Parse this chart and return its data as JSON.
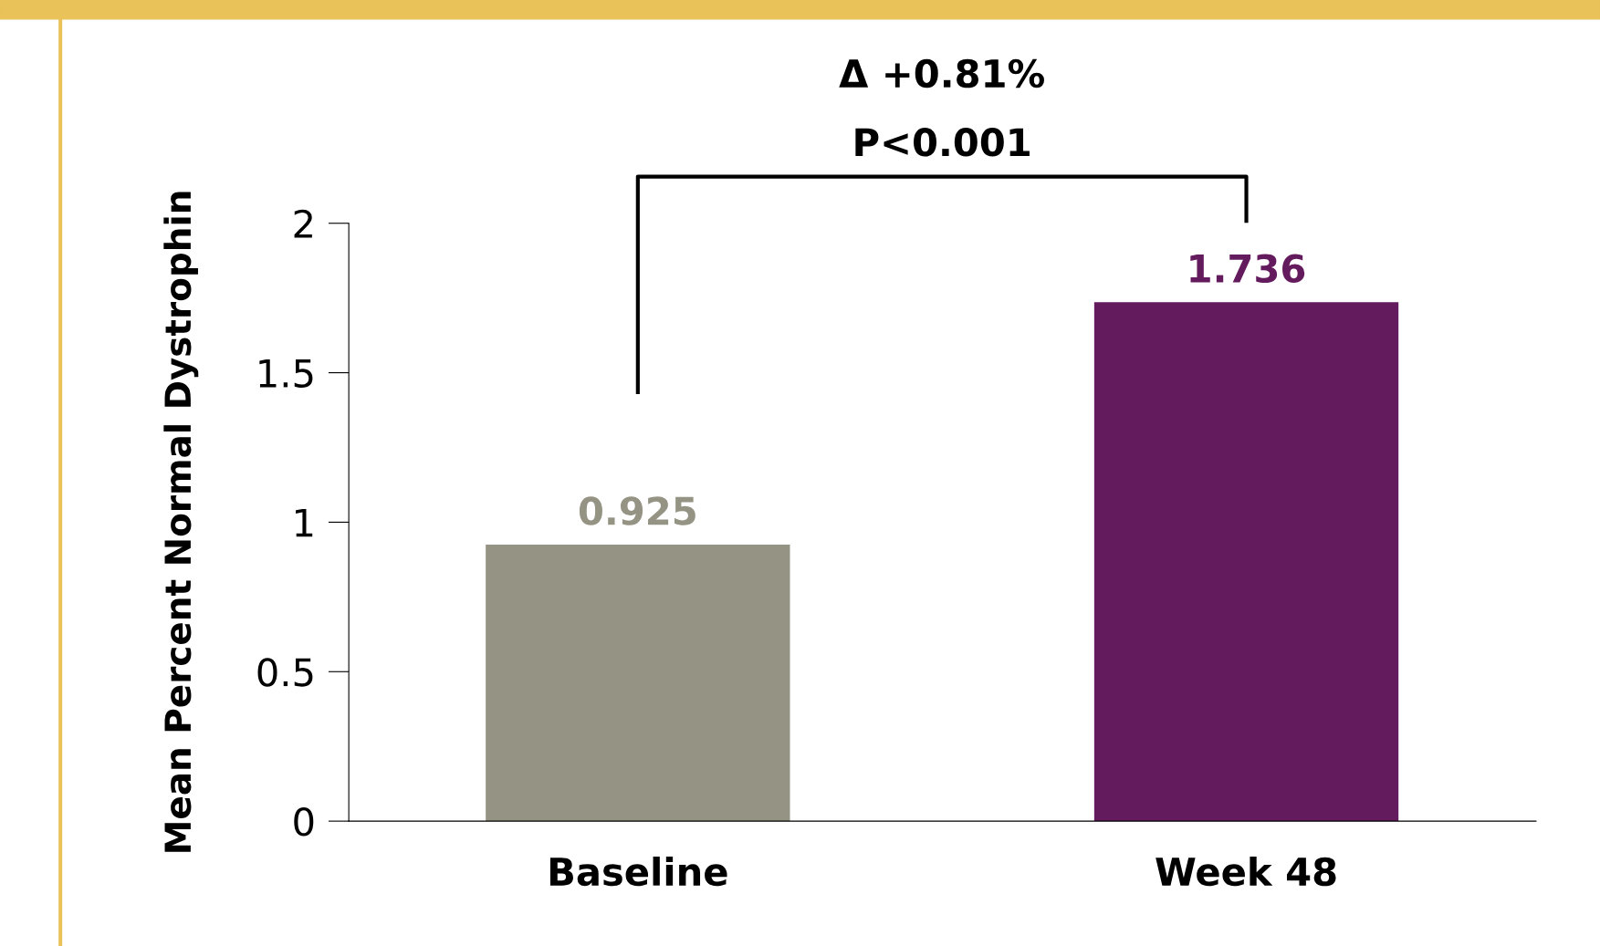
{
  "chart_data": {
    "type": "bar",
    "ylabel": "Mean Percent Normal Dystrophin",
    "categories": [
      "Baseline",
      "Week 48"
    ],
    "values": [
      0.925,
      1.736
    ],
    "colors": [
      "#959383",
      "#641b5e"
    ],
    "data_labels": true,
    "ylim": [
      0,
      2
    ],
    "yticks": [
      0,
      0.5,
      1,
      1.5,
      2
    ],
    "grid": false,
    "legend": false,
    "annotations": [
      "Δ +0.81%",
      "P<0.001"
    ]
  }
}
